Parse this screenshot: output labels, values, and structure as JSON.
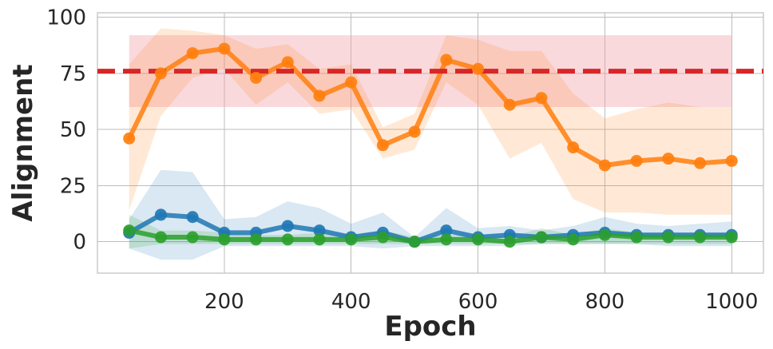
{
  "chart_data": {
    "type": "line",
    "xlabel": "Epoch",
    "ylabel": "Alignment",
    "xlim": [
      0,
      1050
    ],
    "ylim": [
      -14,
      102
    ],
    "x_ticks": [
      200,
      400,
      600,
      800,
      1000
    ],
    "y_ticks": [
      0,
      25,
      50,
      75,
      100
    ],
    "grid": true,
    "legend": "none",
    "x": [
      50,
      100,
      150,
      200,
      250,
      300,
      350,
      400,
      450,
      500,
      550,
      600,
      650,
      700,
      750,
      800,
      850,
      900,
      950,
      1000
    ],
    "reference": {
      "value": 76,
      "band": [
        60,
        92
      ],
      "x_range": [
        50,
        1000
      ],
      "color": "#d62728",
      "band_color": "#f2a0a8"
    },
    "series": [
      {
        "color": "#ff7f0e",
        "values": [
          46,
          75,
          84,
          86,
          73,
          80,
          65,
          71,
          43,
          49,
          81,
          77,
          61,
          64,
          42,
          34,
          36,
          37,
          35,
          36
        ],
        "band_lower": [
          14,
          56,
          73,
          77,
          61,
          71,
          57,
          59,
          37,
          41,
          71,
          61,
          37,
          44,
          19,
          13,
          13,
          12,
          12,
          12
        ],
        "band_upper": [
          79,
          95,
          94,
          92,
          86,
          88,
          77,
          79,
          51,
          57,
          92,
          90,
          85,
          85,
          66,
          55,
          59,
          62,
          60,
          60
        ]
      },
      {
        "color": "#1f77b4",
        "values": [
          4,
          12,
          11,
          4,
          4,
          7,
          5,
          2,
          4,
          0,
          5,
          2,
          3,
          2,
          3,
          4,
          3,
          3,
          3,
          3
        ],
        "band_lower": [
          -3,
          -8,
          -8,
          -2,
          -2,
          -2,
          -2,
          -2,
          -3,
          -2,
          -2,
          -2,
          -2,
          -1,
          -1,
          -1,
          -1,
          -2,
          -2,
          -2
        ],
        "band_upper": [
          10,
          32,
          31,
          10,
          11,
          18,
          15,
          8,
          13,
          2,
          15,
          6,
          7,
          5,
          7,
          11,
          8,
          7,
          8,
          9
        ]
      },
      {
        "color": "#2ca02c",
        "values": [
          5,
          2,
          2,
          1,
          1,
          1,
          1,
          1,
          2,
          0,
          1,
          1,
          0,
          2,
          1,
          3,
          2,
          2,
          2,
          2
        ],
        "band_lower": [
          -3,
          -1,
          -1,
          -1,
          -1,
          -1,
          -1,
          -1,
          -1,
          -1,
          -1,
          -1,
          -1,
          -1,
          -1,
          -1,
          -1,
          -1,
          -1,
          -1
        ],
        "band_upper": [
          12,
          5,
          5,
          4,
          3,
          3,
          4,
          3,
          5,
          2,
          3,
          3,
          2,
          6,
          3,
          6,
          4,
          4,
          4,
          4
        ]
      }
    ]
  }
}
